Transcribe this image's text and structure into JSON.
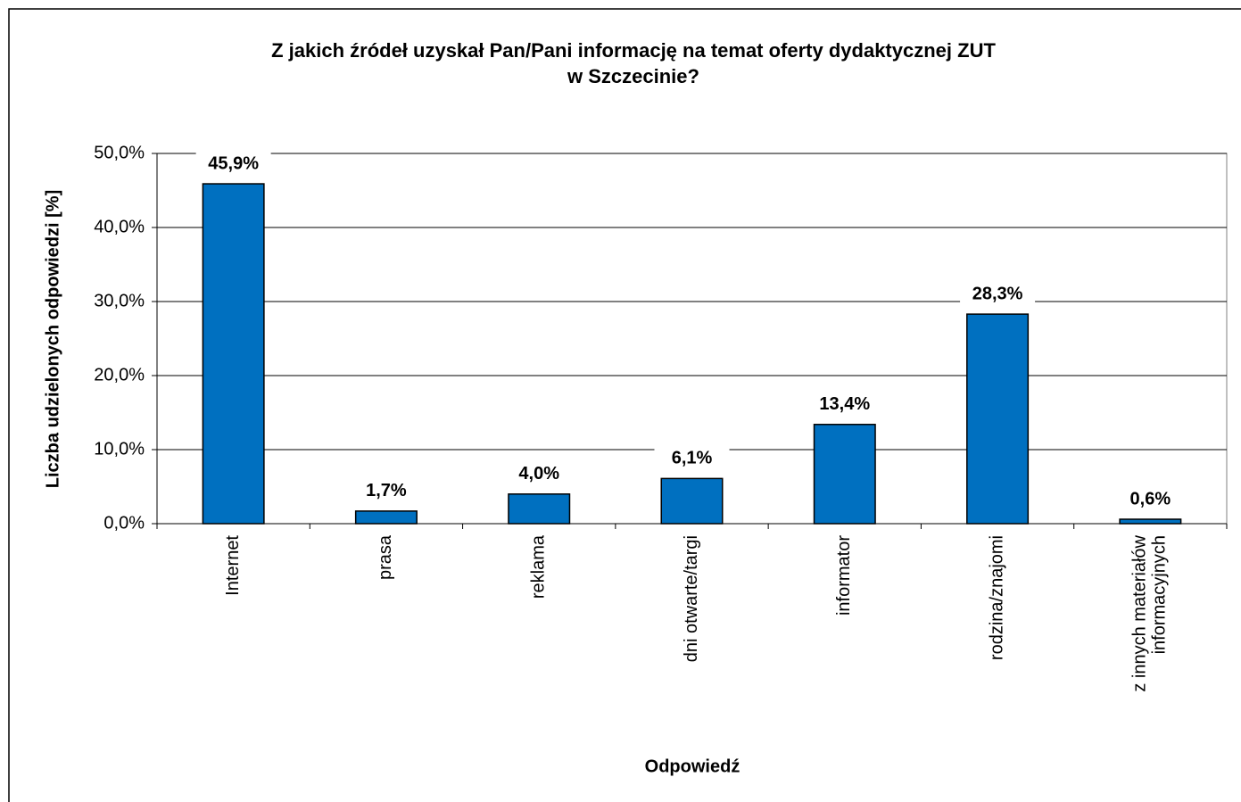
{
  "chart_data": {
    "type": "bar",
    "title": [
      "Z jakich źródeł uzyskał Pan/Pani informację na temat oferty dydaktycznej ZUT",
      "w Szczecinie?"
    ],
    "x_label": "Odpowiedź",
    "y_label": "Liczba udzielonych  odpowiedzi [%]",
    "categories": [
      "Internet",
      "prasa",
      "reklama",
      "dni otwarte/targi",
      "informator",
      "rodzina/znajomi",
      [
        "z innych materiałów",
        "informacyjnych"
      ]
    ],
    "values": [
      45.9,
      1.7,
      4.0,
      6.1,
      13.4,
      28.3,
      0.6
    ],
    "value_labels": [
      "45,9%",
      "1,7%",
      "4,0%",
      "6,1%",
      "13,4%",
      "28,3%",
      "0,6%"
    ],
    "color": "#0070c0",
    "ylim": [
      0,
      50
    ],
    "yticks": [
      {
        "value": 0,
        "label": "0,0%"
      },
      {
        "value": 10,
        "label": "10,0%"
      },
      {
        "value": 20,
        "label": "20,0%"
      },
      {
        "value": 30,
        "label": "30,0%"
      },
      {
        "value": 40,
        "label": "40,0%"
      },
      {
        "value": 50,
        "label": "50,0%"
      }
    ],
    "grid": true
  }
}
